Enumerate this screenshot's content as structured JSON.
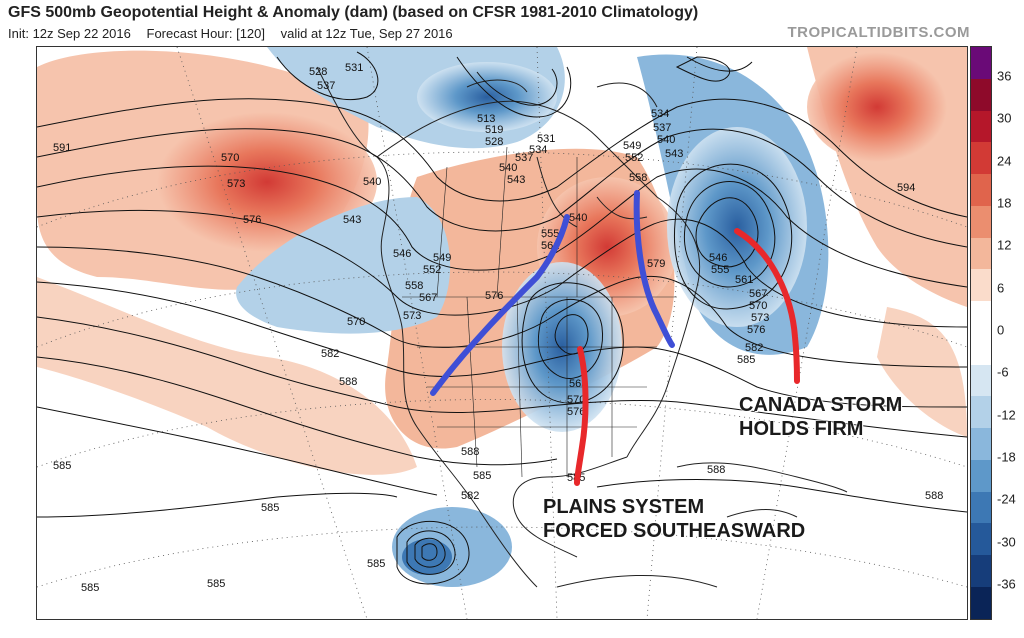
{
  "header": {
    "title": "GFS 500mb Geopotential Height & Anomaly (dam) (based on CFSR 1981-2010 Climatology)",
    "init": "Init: 12z Sep 22 2016",
    "forecast_hour": "Forecast Hour: [120]",
    "valid": "valid at 12z Tue, Sep 27 2016",
    "source": "TROPICALTIDBITS.COM"
  },
  "annotations": {
    "canada_line1": "CANADA STORM",
    "canada_line2": "HOLDS FIRM",
    "plains_line1": "PLAINS SYSTEM",
    "plains_line2": "FORCED SOUTHEASWARD"
  },
  "contour_labels": {
    "l528": "528",
    "l531": "531",
    "l537": "537",
    "l513": "513",
    "l519": "519",
    "l528b": "528",
    "l531b": "531",
    "l534": "534",
    "l537b": "537",
    "l540": "540",
    "l543": "543",
    "l546": "546",
    "l549": "549",
    "l552": "552",
    "l555": "555",
    "l558": "558",
    "l561": "561",
    "l567": "567",
    "l570": "570",
    "l573": "573",
    "l576": "576",
    "l579": "579",
    "l582": "582",
    "l585": "585",
    "l588": "588",
    "l591": "591",
    "l594": "594",
    "e534": "534",
    "e537": "537",
    "e540": "540",
    "e543": "543",
    "e546": "546",
    "e549": "549",
    "e552": "552",
    "e558": "558",
    "e555": "555",
    "e561": "561",
    "e567": "567",
    "e570": "570",
    "e573": "573",
    "e576": "576",
    "e582": "582",
    "e585": "585",
    "w570": "570",
    "w573": "573",
    "w576": "576",
    "w543": "543",
    "w540": "540",
    "m546": "546",
    "m549": "549",
    "m552": "552",
    "m558": "558",
    "m567": "567",
    "m573": "573",
    "m570": "570",
    "m576": "576",
    "m582": "582",
    "m588": "588",
    "p540": "540",
    "p555": "555",
    "p561": "561",
    "p576": "576",
    "s563": "563",
    "s570": "570",
    "s576": "576",
    "g588": "588",
    "g585": "585",
    "g582": "582",
    "g588b": "588",
    "g588c": "588",
    "sw585a": "585",
    "sw585b": "585",
    "sw585c": "585",
    "sw585d": "585",
    "sw585e": "585"
  },
  "colorbar": {
    "ticks": [
      "36",
      "30",
      "24",
      "18",
      "12",
      "6",
      "0",
      "-6",
      "-12",
      "-18",
      "-24",
      "-30",
      "-36"
    ],
    "colors": [
      "#6a0a77",
      "#8e0a2a",
      "#b5172a",
      "#d23a35",
      "#e0644c",
      "#eb8e6f",
      "#f3b79b",
      "#fadccb",
      "#ffffff",
      "#ffffff",
      "#d6e6f2",
      "#b3d1e8",
      "#8ab7dc",
      "#5e98c9",
      "#3d78b4",
      "#25599a",
      "#163d7a",
      "#0a2457"
    ]
  }
}
